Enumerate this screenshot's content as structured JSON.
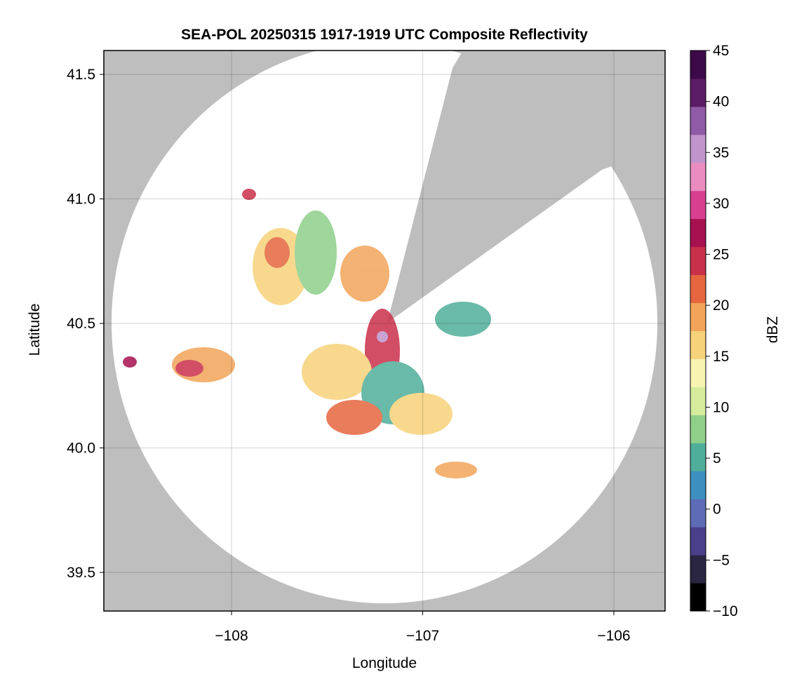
{
  "chart_data": {
    "type": "heatmap",
    "title": "SEA-POL 20250315 1917-1919 UTC Composite Reflectivity",
    "x_label": "Longitude",
    "y_label": "Latitude",
    "xlim": [
      -108.668,
      -105.732
    ],
    "xticks": [
      {
        "value": -108,
        "label": "−108"
      },
      {
        "value": -107,
        "label": "−107"
      },
      {
        "value": -106,
        "label": "−106"
      }
    ],
    "ylim": [
      39.345,
      41.596
    ],
    "yticks": [
      39.5,
      {
        "value": 40,
        "label": "40.0"
      },
      40.5,
      {
        "value": 41,
        "label": "41.0"
      },
      41.5
    ],
    "grid": true,
    "colorbar": {
      "label": "dBZ",
      "lim": [
        -10,
        45
      ],
      "ticks": [
        {
          "value": -10,
          "label": "−10"
        },
        {
          "value": -5,
          "label": "−5"
        },
        0,
        5,
        10,
        15,
        20,
        25,
        30,
        35,
        40,
        45
      ],
      "colors": [
        "#000000",
        "#2a2540",
        "#4a3f8a",
        "#5e6cb8",
        "#3d8fbf",
        "#4fae9a",
        "#8fcf8a",
        "#d6ec9c",
        "#f7f3b0",
        "#f6d27a",
        "#f2a45a",
        "#e5663f",
        "#c9304a",
        "#a7114f",
        "#d83f8f",
        "#ea8cc0",
        "#c095cc",
        "#8f5aa6",
        "#5b1c66",
        "#3c0a48"
      ]
    }
  }
}
